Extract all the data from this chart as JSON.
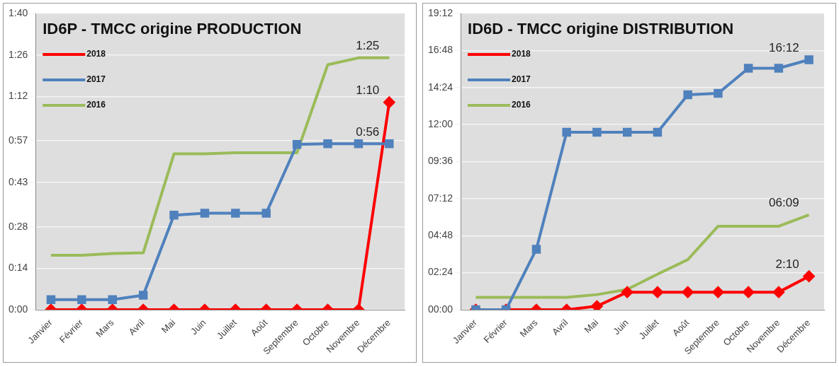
{
  "chart_data": [
    {
      "type": "line",
      "title": "ID6P - TMCC origine PRODUCTION",
      "categories": [
        "Janvier",
        "Février",
        "Mars",
        "Avril",
        "Mai",
        "Juin",
        "Juillet",
        "Août",
        "Septembre",
        "Octobre",
        "Novembre",
        "Décembre"
      ],
      "series": [
        {
          "name": "2018",
          "color": "#ff0000",
          "marker": "diamond",
          "values": [
            0,
            0,
            0,
            0,
            0,
            0,
            0,
            0,
            0,
            0,
            0,
            70
          ],
          "value_labels": [
            null,
            null,
            null,
            null,
            null,
            null,
            null,
            null,
            null,
            null,
            null,
            "1:10"
          ]
        },
        {
          "name": "2017",
          "color": "#4f81bd",
          "marker": "square",
          "values": [
            3.4,
            3.4,
            3.4,
            4.9,
            31.9,
            32.6,
            32.6,
            32.6,
            55.8,
            56,
            56,
            56
          ],
          "value_labels": [
            null,
            null,
            null,
            null,
            null,
            null,
            null,
            null,
            null,
            null,
            null,
            "0:56"
          ]
        },
        {
          "name": "2016",
          "color": "#9bbb59",
          "marker": "none",
          "values": [
            18.4,
            18.4,
            19,
            19.2,
            52.6,
            52.6,
            53,
            53,
            53,
            82.7,
            85,
            85
          ],
          "value_labels": [
            null,
            null,
            null,
            null,
            null,
            null,
            null,
            null,
            null,
            null,
            null,
            "1:25"
          ]
        }
      ],
      "ylim": [
        0,
        100
      ],
      "yticks": [
        {
          "value": 0,
          "label": "0:00"
        },
        {
          "value": 14,
          "label": "0:14"
        },
        {
          "value": 28,
          "label": "0:28"
        },
        {
          "value": 43,
          "label": "0:43"
        },
        {
          "value": 57,
          "label": "0:57"
        },
        {
          "value": 72,
          "label": "1:12"
        },
        {
          "value": 86,
          "label": "1:26"
        },
        {
          "value": 100,
          "label": "1:40"
        }
      ],
      "grid": "y",
      "legend": "top left"
    },
    {
      "type": "line",
      "title": "ID6D - TMCC origine DISTRIBUTION",
      "categories": [
        "Janvier",
        "Février",
        "Mars",
        "Avril",
        "Mai",
        "Juin",
        "Juillet",
        "Août",
        "Septembre",
        "Octobre",
        "Novembre",
        "Décembre"
      ],
      "series": [
        {
          "name": "2018",
          "color": "#ff0000",
          "marker": "diamond",
          "values": [
            0,
            0,
            0,
            0,
            0.23,
            1.14,
            1.14,
            1.14,
            1.14,
            1.14,
            1.14,
            2.17
          ],
          "value_labels": [
            null,
            null,
            null,
            null,
            null,
            null,
            null,
            null,
            null,
            null,
            null,
            "2:10"
          ]
        },
        {
          "name": "2017",
          "color": "#4f81bd",
          "marker": "square",
          "values": [
            0,
            0,
            3.92,
            11.5,
            11.5,
            11.5,
            11.5,
            13.93,
            14.02,
            15.65,
            15.65,
            16.2
          ],
          "value_labels": [
            null,
            null,
            null,
            null,
            null,
            null,
            null,
            null,
            null,
            null,
            null,
            "16:12"
          ]
        },
        {
          "name": "2016",
          "color": "#9bbb59",
          "marker": "none",
          "values": [
            0.8,
            0.8,
            0.8,
            0.8,
            0.98,
            1.32,
            2.3,
            3.25,
            5.41,
            5.41,
            5.41,
            6.15
          ],
          "value_labels": [
            null,
            null,
            null,
            null,
            null,
            null,
            null,
            null,
            null,
            null,
            null,
            "06:09"
          ]
        }
      ],
      "ylim": [
        0,
        19.2
      ],
      "yticks": [
        {
          "value": 0,
          "label": "00:00"
        },
        {
          "value": 2.4,
          "label": "02:24"
        },
        {
          "value": 4.8,
          "label": "04:48"
        },
        {
          "value": 7.2,
          "label": "07:12"
        },
        {
          "value": 9.6,
          "label": "09:36"
        },
        {
          "value": 12,
          "label": "12:00"
        },
        {
          "value": 14.4,
          "label": "14:24"
        },
        {
          "value": 16.8,
          "label": "16:48"
        },
        {
          "value": 19.2,
          "label": "19:12"
        }
      ],
      "grid": "y",
      "legend": "top left"
    }
  ]
}
